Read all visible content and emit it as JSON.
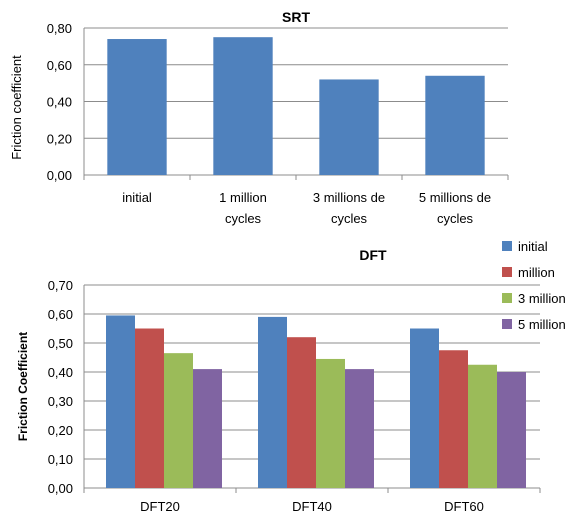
{
  "chart_data": [
    {
      "type": "bar",
      "title": "SRT",
      "ylabel": "Friction coefficient",
      "xlabel": "",
      "ylim": [
        0,
        0.8
      ],
      "yticks": [
        "0,00",
        "0,20",
        "0,40",
        "0,60",
        "0,80"
      ],
      "categories": [
        [
          "initial"
        ],
        [
          "1 million",
          "cycles"
        ],
        [
          "3 millions de",
          "cycles"
        ],
        [
          "5 millions de",
          "cycles"
        ]
      ],
      "values": [
        0.74,
        0.75,
        0.52,
        0.54
      ],
      "color": "#4f81bd",
      "grid": true
    },
    {
      "type": "bar",
      "title": "DFT",
      "ylabel": "Friction Coefficient",
      "xlabel": "",
      "ylim": [
        0,
        0.7
      ],
      "yticks": [
        "0,00",
        "0,10",
        "0,20",
        "0,30",
        "0,40",
        "0,50",
        "0,60",
        "0,70"
      ],
      "categories": [
        "DFT20",
        "DFT40",
        "DFT60"
      ],
      "series": [
        {
          "name": "initial",
          "color": "#4f81bd",
          "values": [
            0.595,
            0.59,
            0.55
          ]
        },
        {
          "name": "million",
          "color": "#c0504d",
          "values": [
            0.55,
            0.52,
            0.475
          ]
        },
        {
          "name": "3 million",
          "color": "#9bbb59",
          "values": [
            0.465,
            0.445,
            0.425
          ]
        },
        {
          "name": "5 million",
          "color": "#8064a2",
          "values": [
            0.41,
            0.41,
            0.4
          ]
        }
      ],
      "legend_position": "right",
      "grid": true
    }
  ]
}
